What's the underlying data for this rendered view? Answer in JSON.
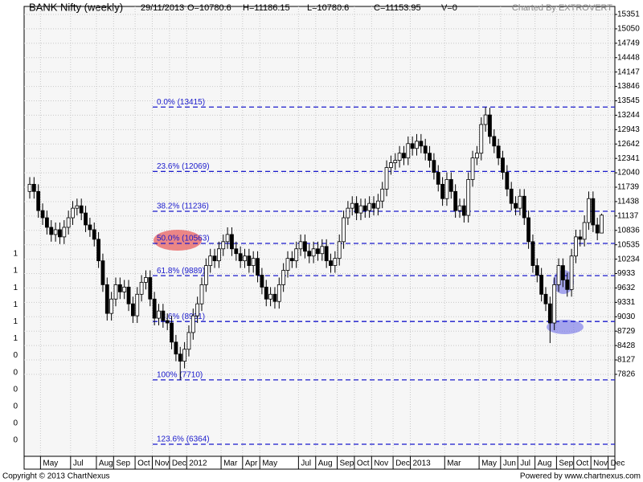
{
  "chart_data": {
    "type": "candlestick",
    "title": "BANK Nifty (weekly)",
    "header_items": [
      "29/11/2013",
      "O=10780.6",
      "H=11186.15",
      "L=10780.6",
      "C=11153.95",
      "V=0"
    ],
    "credit": "Charted By EXTROVERT",
    "footer_left": "Copyright © 2013 ChartNexus",
    "footer_right": "Powered by www.chartnexus.com",
    "up_color": "#ffffff",
    "down_color": "#000000",
    "outline_color": "#000000",
    "grid": true,
    "ylim": [
      6112,
      15519
    ],
    "yticks": [
      15351,
      15050,
      14749,
      14448,
      14147,
      13846,
      13545,
      13244,
      12943,
      12642,
      12341,
      12040,
      11739,
      11438,
      11137,
      10836,
      10535,
      10234,
      9933,
      9632,
      9331,
      9030,
      8729,
      8428,
      8127,
      7826
    ],
    "left_tick_labels": [
      "1",
      "1",
      "1",
      "1",
      "1",
      "1",
      "0",
      "0",
      "0",
      "0",
      "0",
      "0"
    ],
    "fib_color": "#1a1acc",
    "fib_levels": [
      {
        "label": "0.0%  (13415)",
        "value": 13415
      },
      {
        "label": "23.6%  (12069)",
        "value": 12069
      },
      {
        "label": "38.2%  (11236)",
        "value": 11236
      },
      {
        "label": "50.0%  (10563)",
        "value": 10563
      },
      {
        "label": "61.8%  (9889)",
        "value": 9889
      },
      {
        "label": "78.6%  (8931)",
        "value": 8931
      },
      {
        "label": "100%  (7710)",
        "value": 7710
      },
      {
        "label": "123.6%  (6364)",
        "value": 6364
      }
    ],
    "categories": [
      null,
      null,
      null,
      "May",
      null,
      null,
      null,
      null,
      null,
      null,
      "Jul",
      null,
      null,
      null,
      null,
      null,
      "Aug",
      null,
      null,
      null,
      "Sep",
      null,
      null,
      null,
      null,
      "Oct",
      null,
      null,
      null,
      "Nov",
      null,
      null,
      null,
      "Dec",
      null,
      null,
      null,
      "2012",
      null,
      null,
      null,
      null,
      null,
      null,
      null,
      "Mar",
      null,
      null,
      null,
      null,
      "Apr",
      null,
      null,
      null,
      "May",
      null,
      null,
      null,
      null,
      null,
      null,
      null,
      null,
      "Jul",
      null,
      null,
      null,
      "Aug",
      null,
      null,
      null,
      null,
      "Sep",
      null,
      null,
      null,
      "Oct",
      null,
      null,
      null,
      "Nov",
      null,
      null,
      null,
      null,
      "Dec",
      null,
      null,
      null,
      "2013",
      null,
      null,
      null,
      null,
      null,
      null,
      null,
      "Mar",
      null,
      null,
      null,
      null,
      null,
      null,
      null,
      "May",
      null,
      null,
      null,
      null,
      "Jun",
      null,
      null,
      null,
      "Jul",
      null,
      null,
      null,
      "Aug",
      null,
      null,
      null,
      null,
      "Sep",
      null,
      null,
      null,
      "Oct",
      null,
      null,
      null,
      "Nov",
      null,
      null,
      null,
      "Dec"
    ],
    "open": [
      11650,
      11800,
      11650,
      11250,
      11100,
      10900,
      10750,
      10850,
      10700,
      10900,
      11100,
      11300,
      11350,
      11200,
      10950,
      10850,
      10650,
      10200,
      9700,
      9100,
      9400,
      9700,
      9550,
      9650,
      9300,
      9050,
      9500,
      9750,
      9850,
      9400,
      9000,
      9150,
      8950,
      8900,
      8500,
      8250,
      8100,
      8350,
      8700,
      9050,
      9300,
      9700,
      10100,
      10300,
      10200,
      10450,
      10600,
      10750,
      10450,
      10350,
      10200,
      10300,
      10100,
      10250,
      9900,
      9650,
      9400,
      9500,
      9350,
      9700,
      10000,
      10250,
      10200,
      10450,
      10600,
      10400,
      10300,
      10450,
      10350,
      10500,
      10200,
      10100,
      10250,
      10600,
      11100,
      11300,
      11400,
      11200,
      11350,
      11250,
      11400,
      11300,
      11450,
      11700,
      12150,
      12250,
      12300,
      12450,
      12350,
      12650,
      12550,
      12700,
      12600,
      12450,
      12300,
      12050,
      11800,
      11500,
      11900,
      11650,
      11250,
      11350,
      11150,
      11900,
      12350,
      12450,
      13050,
      13250,
      12800,
      12600,
      12350,
      12050,
      11700,
      11400,
      11300,
      11550,
      11100,
      10600,
      10100,
      9900,
      9500,
      9300,
      8900,
      9700,
      10100,
      9800,
      9600,
      10300,
      10700,
      10650,
      11000,
      11500,
      10950,
      10780.6,
      null,
      null
    ],
    "high": [
      11950,
      11950,
      11800,
      11400,
      11250,
      11050,
      11000,
      11000,
      11050,
      11250,
      11450,
      11500,
      11500,
      11350,
      11100,
      11000,
      10800,
      10350,
      9850,
      9550,
      9850,
      9850,
      9800,
      9800,
      9450,
      9650,
      9900,
      10000,
      10000,
      9550,
      9300,
      9300,
      9100,
      9050,
      8650,
      8400,
      8500,
      8850,
      9200,
      9450,
      9850,
      10250,
      10450,
      10450,
      10600,
      10750,
      10900,
      10900,
      10600,
      10500,
      10450,
      10450,
      10400,
      10400,
      10050,
      9800,
      9650,
      9650,
      9850,
      10150,
      10400,
      10400,
      10600,
      10750,
      10750,
      10550,
      10600,
      10600,
      10650,
      10650,
      10350,
      10400,
      10750,
      11250,
      11450,
      11550,
      11550,
      11500,
      11500,
      11550,
      11550,
      11600,
      11850,
      12300,
      12400,
      12450,
      12600,
      12600,
      12800,
      12800,
      12850,
      12850,
      12750,
      12600,
      12450,
      12200,
      11950,
      12050,
      12050,
      11800,
      11500,
      11500,
      12050,
      12500,
      12600,
      13200,
      13415,
      13400,
      12950,
      12750,
      12500,
      12200,
      11850,
      11550,
      11700,
      11700,
      11250,
      10750,
      10250,
      10050,
      9650,
      9450,
      9850,
      10250,
      10250,
      9950,
      10450,
      10850,
      10850,
      11150,
      11650,
      11650,
      11100,
      11186.15,
      null,
      null
    ],
    "low": [
      11500,
      11500,
      11100,
      10950,
      10750,
      10600,
      10600,
      10550,
      10550,
      10750,
      10950,
      11150,
      11050,
      10800,
      10700,
      10500,
      10050,
      9550,
      8950,
      8950,
      9250,
      9400,
      9400,
      9150,
      8900,
      8900,
      9350,
      9600,
      9250,
      8850,
      8850,
      8800,
      8750,
      8350,
      8100,
      7710,
      7950,
      8200,
      8550,
      8900,
      9150,
      9550,
      9950,
      10050,
      10050,
      10300,
      10450,
      10300,
      10200,
      10050,
      10050,
      9950,
      9950,
      9750,
      9500,
      9250,
      9250,
      9200,
      9200,
      9550,
      9850,
      10050,
      10050,
      10300,
      10250,
      10150,
      10150,
      10200,
      10200,
      10050,
      9950,
      9950,
      10100,
      10450,
      10950,
      11150,
      11050,
      11050,
      11100,
      11100,
      11150,
      11150,
      11300,
      11550,
      12000,
      12100,
      12150,
      12200,
      12200,
      12400,
      12400,
      12450,
      12300,
      12150,
      11900,
      11650,
      11350,
      11350,
      11500,
      11100,
      11100,
      11000,
      11000,
      11750,
      12200,
      12300,
      12900,
      12650,
      12450,
      12200,
      11900,
      11550,
      11250,
      11150,
      11150,
      10950,
      10450,
      9950,
      9750,
      9350,
      9150,
      8480,
      8750,
      9550,
      9650,
      9450,
      9450,
      10150,
      10500,
      10500,
      10850,
      10800,
      10630,
      10780.6,
      null,
      null
    ],
    "close": [
      11800,
      11650,
      11250,
      11100,
      10900,
      10750,
      10850,
      10700,
      10900,
      11100,
      11300,
      11350,
      11200,
      10950,
      10850,
      10650,
      10200,
      9700,
      9100,
      9400,
      9700,
      9550,
      9650,
      9300,
      9050,
      9500,
      9750,
      9850,
      9400,
      9000,
      9150,
      8950,
      8900,
      8500,
      8250,
      8100,
      8350,
      8700,
      9050,
      9300,
      9700,
      10100,
      10300,
      10200,
      10450,
      10600,
      10750,
      10450,
      10350,
      10200,
      10300,
      10100,
      10250,
      9900,
      9650,
      9400,
      9500,
      9350,
      9700,
      10000,
      10250,
      10200,
      10450,
      10600,
      10400,
      10300,
      10450,
      10350,
      10500,
      10200,
      10100,
      10250,
      10600,
      11100,
      11300,
      11400,
      11200,
      11350,
      11250,
      11400,
      11300,
      11450,
      11700,
      12150,
      12250,
      12300,
      12450,
      12350,
      12650,
      12550,
      12700,
      12600,
      12450,
      12300,
      12050,
      11800,
      11500,
      11900,
      11650,
      11250,
      11350,
      11150,
      11900,
      12350,
      12450,
      13050,
      13250,
      12800,
      12600,
      12350,
      12050,
      11700,
      11400,
      11300,
      11550,
      11100,
      10600,
      10100,
      9900,
      9500,
      9300,
      8900,
      9700,
      10100,
      9800,
      9600,
      10300,
      10700,
      10650,
      11000,
      11500,
      10950,
      10780.6,
      11153.95,
      null,
      null
    ]
  }
}
